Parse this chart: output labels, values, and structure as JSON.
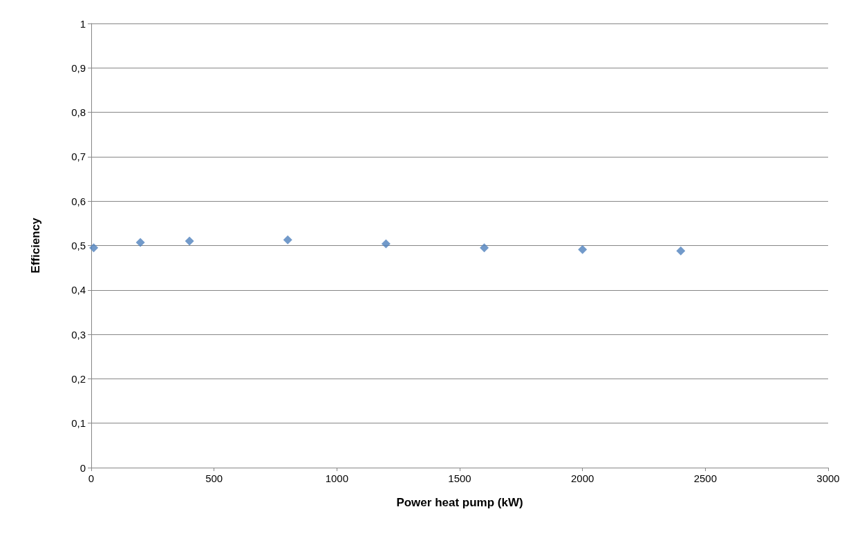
{
  "chart_data": {
    "type": "scatter",
    "xlabel": "Power heat pump (kW)",
    "ylabel": "Efficiency",
    "x": [
      10,
      200,
      400,
      800,
      1200,
      1600,
      2000,
      2400
    ],
    "values": [
      0.495,
      0.507,
      0.51,
      0.513,
      0.504,
      0.495,
      0.491,
      0.488
    ],
    "color": "#4f81bd",
    "marker": "diamond",
    "grid": "y",
    "xlim": [
      0,
      3000
    ],
    "xticks": [
      0,
      500,
      1000,
      1500,
      2000,
      2500,
      3000
    ],
    "ylim": [
      0,
      1
    ],
    "yticks": [
      0,
      {
        "value": 0.1,
        "label": "0,1"
      },
      {
        "value": 0.2,
        "label": "0,2"
      },
      {
        "value": 0.3,
        "label": "0,3"
      },
      {
        "value": 0.4,
        "label": "0,4"
      },
      {
        "value": 0.5,
        "label": "0,5"
      },
      {
        "value": 0.6,
        "label": "0,6"
      },
      {
        "value": 0.7,
        "label": "0,7"
      },
      {
        "value": 0.8,
        "label": "0,8"
      },
      {
        "value": 0.9,
        "label": "0,9"
      },
      1
    ]
  }
}
